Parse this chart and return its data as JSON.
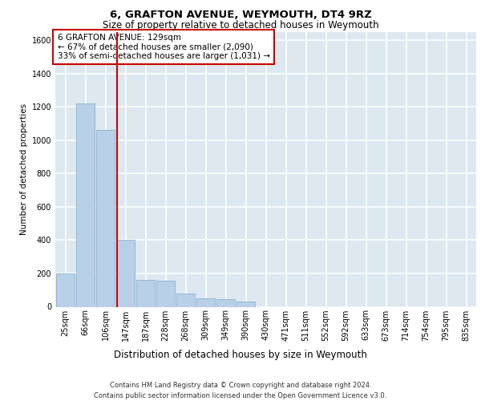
{
  "title1": "6, GRAFTON AVENUE, WEYMOUTH, DT4 9RZ",
  "title2": "Size of property relative to detached houses in Weymouth",
  "xlabel": "Distribution of detached houses by size in Weymouth",
  "ylabel": "Number of detached properties",
  "categories": [
    "25sqm",
    "66sqm",
    "106sqm",
    "147sqm",
    "187sqm",
    "228sqm",
    "268sqm",
    "309sqm",
    "349sqm",
    "390sqm",
    "430sqm",
    "471sqm",
    "511sqm",
    "552sqm",
    "592sqm",
    "633sqm",
    "673sqm",
    "714sqm",
    "754sqm",
    "795sqm",
    "835sqm"
  ],
  "values": [
    200,
    1220,
    1060,
    400,
    160,
    155,
    80,
    50,
    45,
    30,
    0,
    0,
    0,
    0,
    0,
    0,
    0,
    0,
    0,
    0,
    0
  ],
  "bar_color": "#b8d0e8",
  "bar_edge_color": "#7aaac8",
  "background_color": "#dde8f0",
  "grid_color": "#ffffff",
  "annotation_box_color": "#cc0000",
  "vline_color": "#cc0000",
  "annotation_title": "6 GRAFTON AVENUE: 129sqm",
  "annotation_line1": "← 67% of detached houses are smaller (2,090)",
  "annotation_line2": "33% of semi-detached houses are larger (1,031) →",
  "footer1": "Contains HM Land Registry data © Crown copyright and database right 2024.",
  "footer2": "Contains public sector information licensed under the Open Government Licence v3.0.",
  "ylim": [
    0,
    1650
  ],
  "yticks": [
    0,
    200,
    400,
    600,
    800,
    1000,
    1200,
    1400,
    1600
  ],
  "title1_fontsize": 9.5,
  "title2_fontsize": 8.5,
  "ylabel_fontsize": 7.5,
  "xlabel_fontsize": 8.5,
  "tick_fontsize": 7,
  "ann_fontsize": 7.5,
  "footer_fontsize": 6
}
